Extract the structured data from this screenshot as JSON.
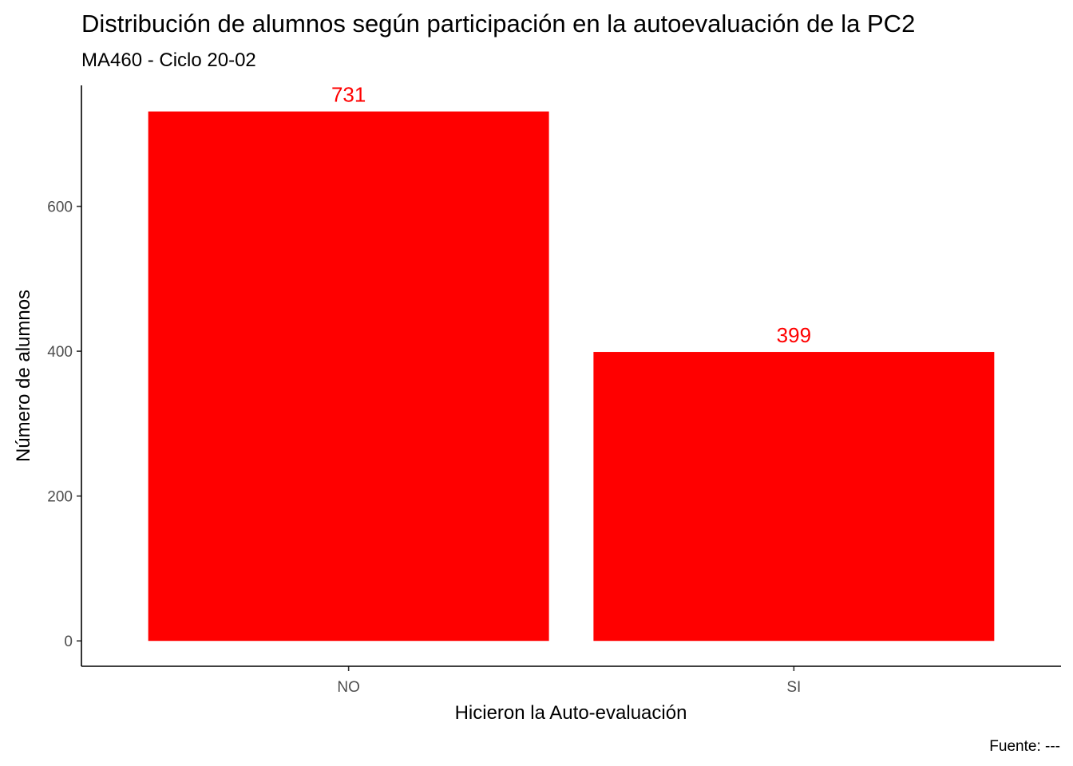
{
  "chart_data": {
    "type": "bar",
    "title": "Distribución de alumnos según participación en la autoevaluación de la PC2",
    "subtitle": "MA460 - Ciclo 20-02",
    "xlabel": "Hicieron la Auto-evaluación",
    "ylabel": "Número de alumnos",
    "caption": "Fuente: ---",
    "categories": [
      "NO",
      "SI"
    ],
    "values": [
      731,
      399
    ],
    "data_labels": [
      "731",
      "399"
    ],
    "yticks": [
      0,
      200,
      400,
      600
    ],
    "ytick_labels": [
      "0",
      "200",
      "400",
      "600"
    ],
    "ylim": [
      -35,
      767
    ],
    "grid": false,
    "legend": "none",
    "colors": {
      "bar": "#ff0000",
      "data_label": "#ff0000",
      "axis_line": "#000000",
      "tick_label": "#4d4d4d"
    }
  }
}
